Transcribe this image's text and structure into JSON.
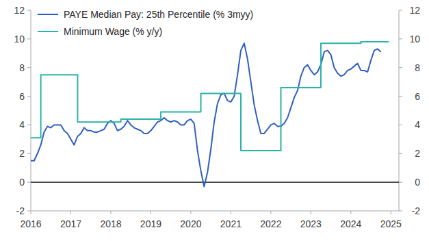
{
  "chart_data": {
    "type": "line",
    "legend": "top-left",
    "grid": false,
    "xlim": [
      2016,
      2025.2
    ],
    "xticks": [
      2016,
      2017,
      2018,
      2019,
      2020,
      2021,
      2022,
      2023,
      2024,
      2025
    ],
    "ylim": [
      -2,
      12
    ],
    "yticks": [
      -2,
      0,
      2,
      4,
      6,
      8,
      10,
      12
    ],
    "y2lim": [
      -2,
      12
    ],
    "y2ticks": [
      -2,
      0,
      2,
      4,
      6,
      8,
      10,
      12
    ],
    "series": [
      {
        "name": "PAYE Median Pay: 25th Percentile (% 3myy)",
        "color": "#2f5fc4",
        "line_style": "solid",
        "x": [
          2016.0,
          2016.083,
          2016.167,
          2016.25,
          2016.333,
          2016.417,
          2016.5,
          2016.583,
          2016.667,
          2016.75,
          2016.833,
          2016.917,
          2017.0,
          2017.083,
          2017.167,
          2017.25,
          2017.333,
          2017.417,
          2017.5,
          2017.583,
          2017.667,
          2017.75,
          2017.833,
          2017.917,
          2018.0,
          2018.083,
          2018.167,
          2018.25,
          2018.333,
          2018.417,
          2018.5,
          2018.583,
          2018.667,
          2018.75,
          2018.833,
          2018.917,
          2019.0,
          2019.083,
          2019.167,
          2019.25,
          2019.333,
          2019.417,
          2019.5,
          2019.583,
          2019.667,
          2019.75,
          2019.833,
          2019.917,
          2020.0,
          2020.083,
          2020.167,
          2020.25,
          2020.333,
          2020.417,
          2020.5,
          2020.583,
          2020.667,
          2020.75,
          2020.833,
          2020.917,
          2021.0,
          2021.083,
          2021.167,
          2021.25,
          2021.333,
          2021.417,
          2021.5,
          2021.583,
          2021.667,
          2021.75,
          2021.833,
          2021.917,
          2022.0,
          2022.083,
          2022.167,
          2022.25,
          2022.333,
          2022.417,
          2022.5,
          2022.583,
          2022.667,
          2022.75,
          2022.833,
          2022.917,
          2023.0,
          2023.083,
          2023.167,
          2023.25,
          2023.333,
          2023.417,
          2023.5,
          2023.583,
          2023.667,
          2023.75,
          2023.833,
          2023.917,
          2024.0,
          2024.083,
          2024.167,
          2024.25,
          2024.333,
          2024.417,
          2024.5,
          2024.583,
          2024.667,
          2024.75
        ],
        "values": [
          1.5,
          1.5,
          2.0,
          2.6,
          3.5,
          3.9,
          3.8,
          4.0,
          4.0,
          4.0,
          3.6,
          3.4,
          3.0,
          2.6,
          3.2,
          3.4,
          3.8,
          3.6,
          3.6,
          3.5,
          3.5,
          3.6,
          3.7,
          4.1,
          4.3,
          4.1,
          3.6,
          3.7,
          3.9,
          4.3,
          4.0,
          3.8,
          3.7,
          3.6,
          3.4,
          3.4,
          3.6,
          3.9,
          4.2,
          4.3,
          4.5,
          4.3,
          4.2,
          4.3,
          4.2,
          4.0,
          4.0,
          4.3,
          4.4,
          4.1,
          2.2,
          0.8,
          -0.3,
          0.7,
          2.3,
          4.2,
          5.5,
          6.1,
          6.2,
          5.7,
          5.6,
          6.0,
          7.5,
          9.2,
          9.7,
          8.6,
          7.0,
          5.4,
          4.3,
          3.4,
          3.4,
          3.7,
          4.0,
          4.1,
          3.9,
          3.9,
          4.1,
          4.5,
          5.2,
          5.9,
          6.4,
          7.4,
          8.0,
          8.2,
          7.8,
          7.5,
          7.7,
          8.2,
          9.1,
          9.2,
          8.9,
          8.0,
          7.6,
          7.4,
          7.5,
          7.8,
          7.9,
          8.1,
          8.3,
          7.8,
          7.8,
          7.7,
          8.5,
          9.2,
          9.3,
          9.1
        ]
      },
      {
        "name": "Minimum Wage (% y/y)",
        "color": "#2ab3a8",
        "line_style": "step",
        "x": [
          2016.0,
          2016.25,
          2017.17,
          2018.25,
          2019.25,
          2020.25,
          2021.25,
          2022.25,
          2023.25,
          2024.25,
          2024.95
        ],
        "values": [
          3.1,
          7.5,
          4.2,
          4.4,
          4.9,
          6.2,
          2.2,
          6.6,
          9.7,
          9.8,
          9.8
        ]
      }
    ]
  }
}
